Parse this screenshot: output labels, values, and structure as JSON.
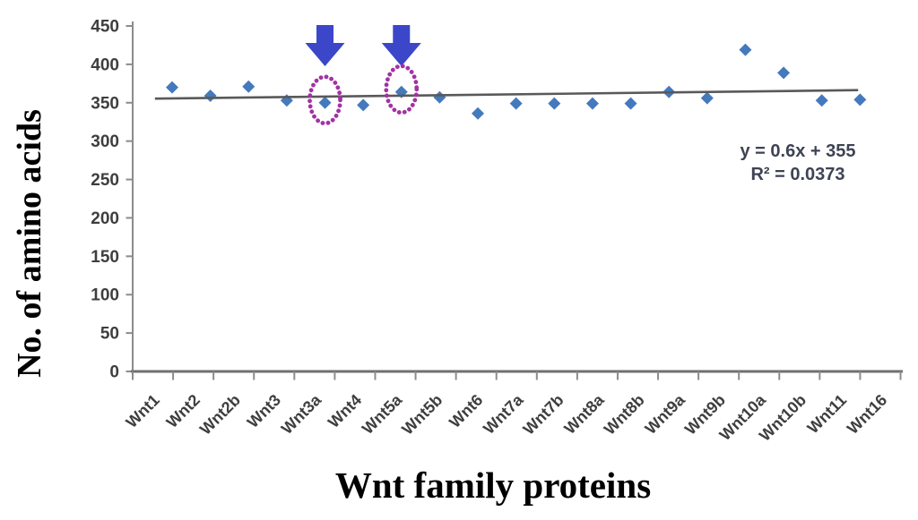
{
  "chart_data": {
    "type": "scatter",
    "title": "",
    "xlabel": "Wnt family proteins",
    "ylabel": "No. of amino acids",
    "categories": [
      "Wnt1",
      "Wnt2",
      "Wnt2b",
      "Wnt3",
      "Wnt3a",
      "Wnt4",
      "Wnt5a",
      "Wnt5b",
      "Wnt6",
      "Wnt7a",
      "Wnt7b",
      "Wnt8a",
      "Wnt8b",
      "Wnt9a",
      "Wnt9b",
      "Wnt10a",
      "Wnt10b",
      "Wnt11",
      "Wnt16"
    ],
    "values": [
      370,
      359,
      371,
      353,
      350,
      347,
      364,
      357,
      336,
      349,
      349,
      349,
      349,
      364,
      356,
      419,
      389,
      353,
      354
    ],
    "ylim": [
      0,
      450
    ],
    "yticks": [
      0,
      50,
      100,
      150,
      200,
      250,
      300,
      350,
      400,
      450
    ],
    "grid": false,
    "legend": "none",
    "trendline": {
      "equation": "y = 0.6x + 355",
      "r_squared": "R² = 0.0373",
      "slope": 0.6,
      "intercept": 355
    },
    "annotations": [
      {
        "target": "Wnt3a",
        "shapes": [
          "down-arrow-icon",
          "dotted-circle"
        ]
      },
      {
        "target": "Wnt5a",
        "shapes": [
          "down-arrow-icon",
          "dotted-circle"
        ]
      }
    ],
    "colors": {
      "point": "#4579BD",
      "trendline": "#595959",
      "arrow": "#3B46C9",
      "circle": "#A232A4",
      "axis": "#8C8C8C",
      "axis_bottom": "#6F6F6F",
      "tick_label": "#3E3E40",
      "equation_text": "#3E4354",
      "title": "#000000"
    }
  }
}
